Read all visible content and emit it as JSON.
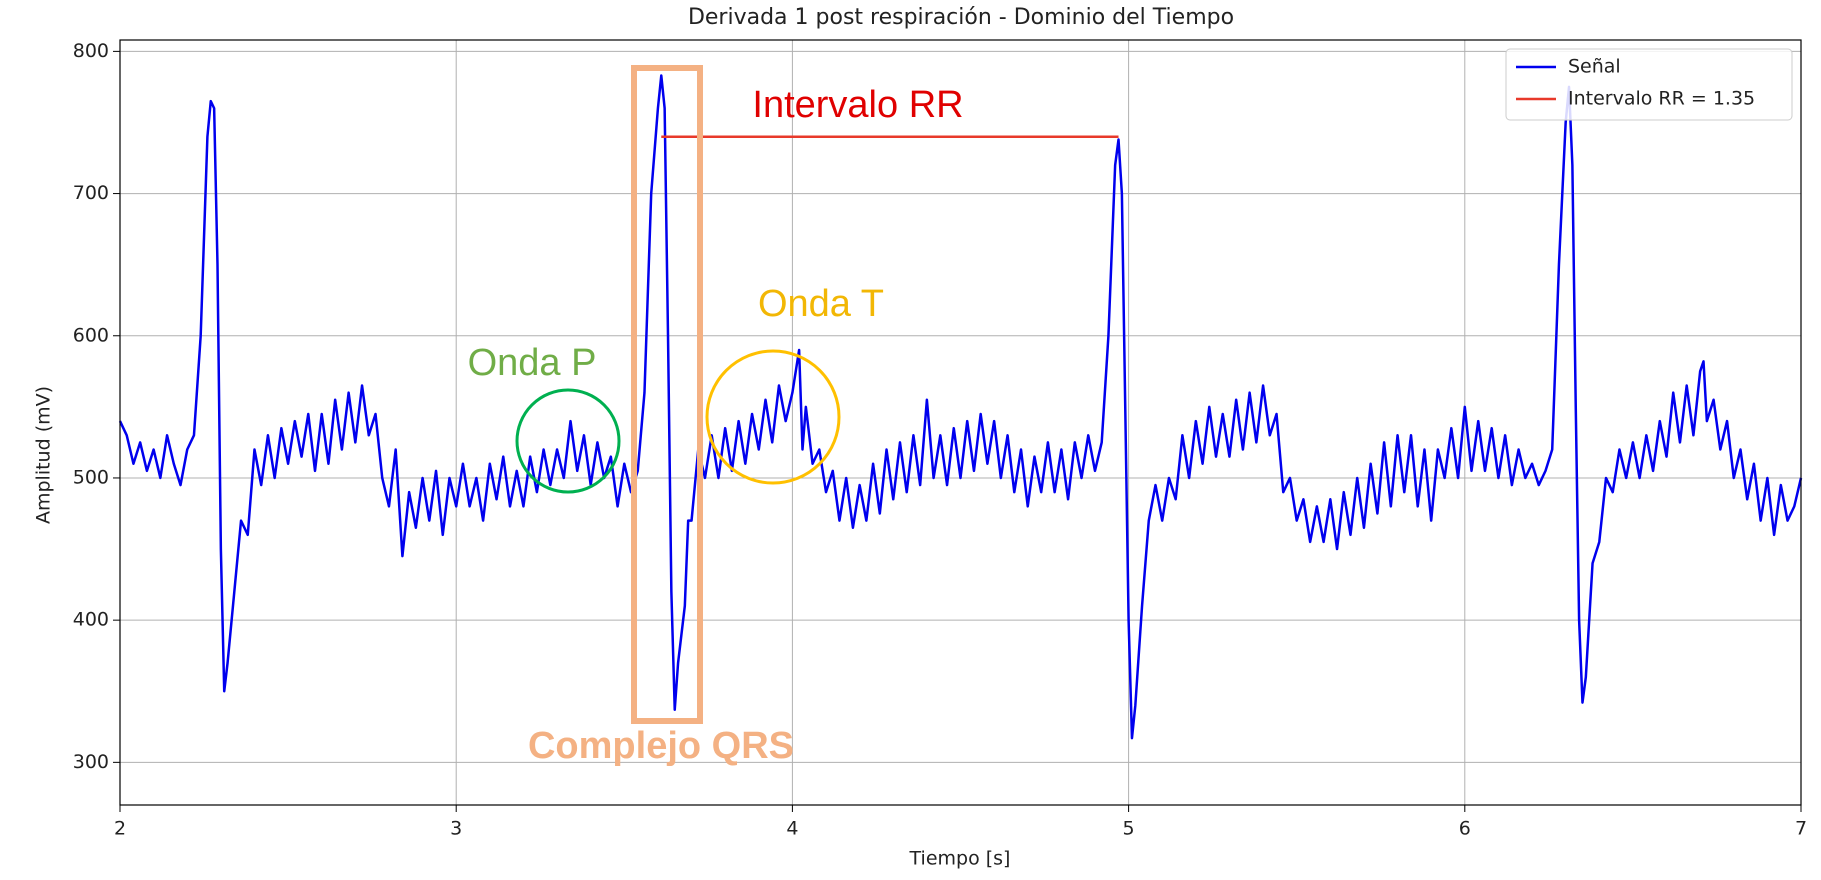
{
  "chart_data": {
    "type": "line",
    "title": "Derivada 1 post respiración - Dominio del Tiempo",
    "x_label": "Tiempo [s]",
    "y_label": "Amplitud (mV)",
    "xlim": [
      2,
      7
    ],
    "ylim": [
      270,
      808
    ],
    "xticks": [
      2,
      3,
      4,
      5,
      6,
      7
    ],
    "yticks": [
      300,
      400,
      500,
      600,
      700,
      800
    ],
    "grid": true,
    "legend": "upper right",
    "annotations": [
      "Intervalo RR",
      "Onda T",
      "Onda P",
      "Complejo QRS"
    ],
    "series": [
      {
        "name": "Señal",
        "color": "#0000ee",
        "x": [
          2.0,
          2.02,
          2.04,
          2.06,
          2.08,
          2.1,
          2.12,
          2.14,
          2.16,
          2.18,
          2.2,
          2.22,
          2.24,
          2.26,
          2.27,
          2.28,
          2.29,
          2.3,
          2.31,
          2.32,
          2.34,
          2.36,
          2.38,
          2.4,
          2.42,
          2.44,
          2.46,
          2.48,
          2.5,
          2.52,
          2.54,
          2.56,
          2.58,
          2.6,
          2.62,
          2.64,
          2.66,
          2.68,
          2.7,
          2.72,
          2.74,
          2.76,
          2.78,
          2.8,
          2.82,
          2.84,
          2.86,
          2.88,
          2.9,
          2.92,
          2.94,
          2.96,
          2.98,
          3.0,
          3.02,
          3.04,
          3.06,
          3.08,
          3.1,
          3.12,
          3.14,
          3.16,
          3.18,
          3.2,
          3.22,
          3.24,
          3.26,
          3.28,
          3.3,
          3.32,
          3.34,
          3.36,
          3.38,
          3.4,
          3.42,
          3.44,
          3.46,
          3.48,
          3.5,
          3.52,
          3.54,
          3.56,
          3.58,
          3.6,
          3.61,
          3.62,
          3.63,
          3.64,
          3.65,
          3.66,
          3.68,
          3.69,
          3.7,
          3.72,
          3.74,
          3.76,
          3.78,
          3.8,
          3.82,
          3.84,
          3.86,
          3.88,
          3.9,
          3.92,
          3.94,
          3.96,
          3.98,
          4.0,
          4.02,
          4.03,
          4.04,
          4.06,
          4.08,
          4.1,
          4.12,
          4.14,
          4.16,
          4.18,
          4.2,
          4.22,
          4.24,
          4.26,
          4.28,
          4.3,
          4.32,
          4.34,
          4.36,
          4.38,
          4.4,
          4.42,
          4.44,
          4.46,
          4.48,
          4.5,
          4.52,
          4.54,
          4.56,
          4.58,
          4.6,
          4.62,
          4.64,
          4.66,
          4.68,
          4.7,
          4.72,
          4.74,
          4.76,
          4.78,
          4.8,
          4.82,
          4.84,
          4.86,
          4.88,
          4.9,
          4.92,
          4.94,
          4.96,
          4.97,
          4.98,
          4.99,
          5.0,
          5.01,
          5.02,
          5.04,
          5.06,
          5.08,
          5.1,
          5.12,
          5.14,
          5.16,
          5.18,
          5.2,
          5.22,
          5.24,
          5.26,
          5.28,
          5.3,
          5.32,
          5.34,
          5.36,
          5.38,
          5.4,
          5.42,
          5.44,
          5.46,
          5.48,
          5.5,
          5.52,
          5.54,
          5.56,
          5.58,
          5.6,
          5.62,
          5.64,
          5.66,
          5.68,
          5.7,
          5.72,
          5.74,
          5.76,
          5.78,
          5.8,
          5.82,
          5.84,
          5.86,
          5.88,
          5.9,
          5.92,
          5.94,
          5.96,
          5.98,
          6.0,
          6.02,
          6.04,
          6.06,
          6.08,
          6.1,
          6.12,
          6.14,
          6.16,
          6.18,
          6.2,
          6.22,
          6.24,
          6.26,
          6.28,
          6.3,
          6.31,
          6.32,
          6.33,
          6.34,
          6.35,
          6.36,
          6.38,
          6.4,
          6.42,
          6.44,
          6.46,
          6.48,
          6.5,
          6.52,
          6.54,
          6.56,
          6.58,
          6.6,
          6.62,
          6.64,
          6.66,
          6.68,
          6.7,
          6.71,
          6.72,
          6.74,
          6.76,
          6.78,
          6.8,
          6.82,
          6.84,
          6.86,
          6.88,
          6.9,
          6.92,
          6.94,
          6.96,
          6.98,
          7.0
        ],
        "values": [
          540,
          530,
          510,
          525,
          505,
          520,
          500,
          530,
          510,
          495,
          520,
          530,
          600,
          740,
          765,
          760,
          650,
          450,
          350,
          370,
          420,
          470,
          460,
          520,
          495,
          530,
          500,
          535,
          510,
          540,
          515,
          545,
          505,
          545,
          510,
          555,
          520,
          560,
          525,
          565,
          530,
          545,
          500,
          480,
          520,
          445,
          490,
          465,
          500,
          470,
          505,
          460,
          500,
          480,
          510,
          480,
          500,
          470,
          510,
          485,
          515,
          480,
          505,
          480,
          515,
          490,
          520,
          495,
          520,
          500,
          540,
          505,
          530,
          495,
          525,
          500,
          515,
          480,
          510,
          490,
          505,
          560,
          700,
          760,
          783,
          760,
          600,
          420,
          337,
          370,
          410,
          470,
          470,
          520,
          500,
          530,
          500,
          535,
          505,
          540,
          510,
          545,
          520,
          555,
          525,
          565,
          540,
          560,
          590,
          520,
          550,
          510,
          520,
          490,
          505,
          470,
          500,
          465,
          495,
          470,
          510,
          475,
          520,
          485,
          525,
          490,
          530,
          495,
          555,
          500,
          530,
          495,
          535,
          500,
          540,
          505,
          545,
          510,
          540,
          500,
          530,
          490,
          520,
          480,
          515,
          490,
          525,
          490,
          520,
          485,
          525,
          500,
          530,
          505,
          525,
          600,
          720,
          738,
          700,
          550,
          400,
          317,
          340,
          410,
          470,
          495,
          470,
          500,
          485,
          530,
          500,
          540,
          510,
          550,
          515,
          545,
          515,
          555,
          520,
          560,
          525,
          565,
          530,
          545,
          490,
          500,
          470,
          485,
          455,
          480,
          455,
          485,
          450,
          490,
          460,
          500,
          465,
          510,
          475,
          525,
          480,
          530,
          490,
          530,
          480,
          520,
          470,
          520,
          500,
          535,
          500,
          550,
          505,
          540,
          505,
          535,
          500,
          530,
          495,
          520,
          500,
          510,
          495,
          505,
          520,
          650,
          750,
          775,
          720,
          550,
          400,
          342,
          360,
          440,
          455,
          500,
          490,
          520,
          500,
          525,
          500,
          530,
          505,
          540,
          515,
          560,
          525,
          565,
          530,
          575,
          582,
          540,
          555,
          520,
          540,
          500,
          520,
          485,
          510,
          470,
          500,
          460,
          495,
          470,
          480,
          500
        ]
      },
      {
        "name": "Intervalo RR = 1.35",
        "color": "#e8392a",
        "x": [
          3.61,
          4.97
        ],
        "values": [
          740,
          740
        ]
      }
    ]
  }
}
